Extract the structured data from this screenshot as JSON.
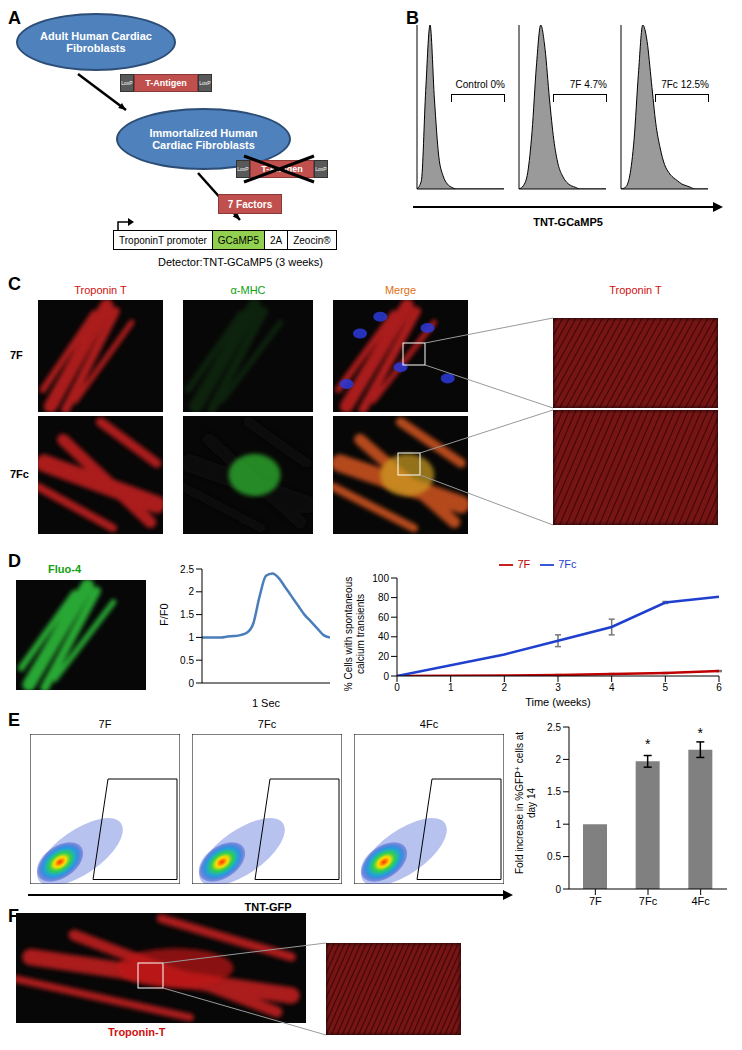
{
  "panel_labels": [
    "A",
    "B",
    "C",
    "D",
    "E",
    "F"
  ],
  "diagram": {
    "cell1": "Adult Human Cardiac Fibroblasts",
    "transgene": "T-Antigen",
    "loxp": "LoxP",
    "cell2": "Immortalized Human Cardiac Fibroblasts",
    "removed_transgene": "T-Antigen",
    "factors": "7 Factors",
    "construct": [
      "TroponinT promoter",
      "GCaMP5",
      "2A",
      "Zeocin®"
    ],
    "detector": "Detector:TNT-GCaMP5 (3 weeks)"
  },
  "flow_B": {
    "xlabel": "TNT-GCaMP5"
  },
  "images_C": {
    "columns": [
      "Troponin T",
      "α-MHC",
      "Merge",
      "Troponin T"
    ],
    "rows": [
      "7F",
      "7Fc"
    ]
  },
  "image_D": {
    "label": "Fluo-4"
  },
  "flow_E": {
    "panels": [
      "7F",
      "7Fc",
      "4Fc"
    ],
    "xlabel": "TNT-GFP"
  },
  "image_F": {
    "label": "Troponin-T"
  },
  "chart_data": [
    {
      "type": "area",
      "annotation": "Control 0%",
      "x": [
        0,
        0.5,
        1,
        1.5,
        2,
        2.5,
        3,
        3.5,
        4,
        4.5,
        5,
        5.5,
        6,
        6.5,
        7,
        7.5,
        8,
        8.5,
        9,
        9.5,
        10
      ],
      "values": [
        0,
        5,
        60,
        100,
        55,
        20,
        8,
        3,
        1,
        0,
        0,
        0,
        0,
        0,
        0,
        0,
        0,
        0,
        0,
        0,
        0
      ],
      "color": "#9a9a9a",
      "xlim": [
        0,
        10
      ],
      "ylim": [
        0,
        100
      ],
      "tick_labels": false
    },
    {
      "type": "area",
      "annotation": "7F 4.7%",
      "x": [
        0,
        0.5,
        1,
        1.5,
        2,
        2.5,
        3,
        3.5,
        4,
        4.5,
        5,
        5.5,
        6,
        6.5,
        7,
        7.5,
        8,
        8.5,
        9,
        9.5,
        10
      ],
      "values": [
        0,
        2,
        10,
        35,
        75,
        100,
        85,
        55,
        30,
        15,
        8,
        4,
        2,
        1,
        0,
        0,
        0,
        0,
        0,
        0,
        0
      ],
      "color": "#9a9a9a",
      "xlim": [
        0,
        10
      ],
      "ylim": [
        0,
        100
      ],
      "tick_labels": false
    },
    {
      "type": "area",
      "annotation": "7Fc 12.5%",
      "x": [
        0,
        0.5,
        1,
        1.5,
        2,
        2.5,
        3,
        3.5,
        4,
        4.5,
        5,
        5.5,
        6,
        6.5,
        7,
        7.5,
        8,
        8.5,
        9,
        9.5,
        10
      ],
      "values": [
        0,
        1,
        8,
        30,
        70,
        100,
        90,
        65,
        40,
        25,
        15,
        10,
        7,
        5,
        3,
        2,
        1,
        0,
        0,
        0,
        0
      ],
      "color": "#9a9a9a",
      "xlim": [
        0,
        10
      ],
      "ylim": [
        0,
        100
      ],
      "tick_labels": false
    },
    {
      "type": "line",
      "xlabel": "1 Sec",
      "ylabel": "F/F0",
      "x": [
        0,
        0.05,
        0.1,
        0.15,
        0.2,
        0.25,
        0.3,
        0.35,
        0.4,
        0.45,
        0.5,
        0.55,
        0.6,
        0.65,
        0.7,
        0.75,
        0.8,
        0.85,
        0.9,
        0.95,
        1
      ],
      "values": [
        1,
        1,
        1,
        1,
        1.02,
        1.03,
        1.05,
        1.1,
        1.3,
        1.9,
        2.35,
        2.4,
        2.3,
        2.1,
        1.9,
        1.7,
        1.5,
        1.35,
        1.2,
        1.05,
        1
      ],
      "color": "#4a7ebb",
      "xlim": [
        0,
        1
      ],
      "ylim": [
        0,
        2.5
      ],
      "yticks": [
        0,
        0.5,
        1,
        1.5,
        2,
        2.5
      ],
      "tick_labels": "y"
    },
    {
      "type": "line",
      "xlabel": "Time (weeks)",
      "ylabel": "% Cells with spontaneous calcium transients",
      "x": [
        0,
        2,
        3,
        4,
        5,
        6
      ],
      "series": [
        {
          "name": "7F",
          "color": "#c00000",
          "values": [
            0,
            0.5,
            1,
            2,
            3,
            5
          ],
          "errors": [
            0,
            0,
            0.5,
            0.5,
            0.5,
            0.5
          ]
        },
        {
          "name": "7Fc",
          "color": "#1f3fcf",
          "values": [
            0,
            22,
            36,
            50,
            75,
            81
          ],
          "errors": [
            0,
            0,
            6,
            8,
            1,
            0
          ]
        }
      ],
      "xlim": [
        0,
        6
      ],
      "xticks": [
        0,
        1,
        2,
        3,
        4,
        5,
        6
      ],
      "ylim": [
        0,
        100
      ],
      "yticks": [
        0,
        20,
        40,
        60,
        80,
        100
      ],
      "legend": "top"
    },
    {
      "type": "bar",
      "ylabel": "Fold increase in %GFP⁺ cells at day 14",
      "categories": [
        "7F",
        "7Fc",
        "4Fc"
      ],
      "values": [
        1,
        1.97,
        2.15
      ],
      "errors": [
        0,
        0.09,
        0.12
      ],
      "value_annotations": [
        null,
        "*",
        "*"
      ],
      "color": "#808080",
      "ylim": [
        0,
        2.5
      ],
      "yticks": [
        0,
        0.5,
        1,
        1.5,
        2,
        2.5
      ]
    }
  ]
}
